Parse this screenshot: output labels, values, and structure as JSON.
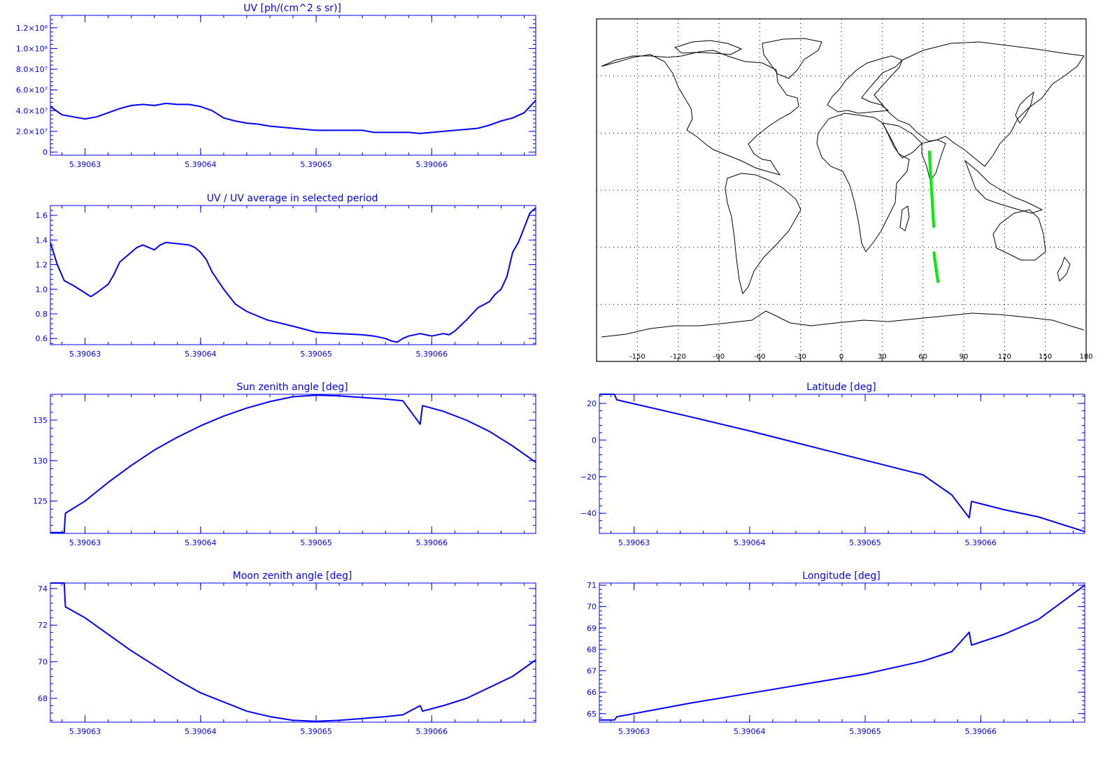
{
  "colors": {
    "plot": "#0000ff",
    "track": "#00ee00",
    "map_line": "#000000",
    "background": "#ffffff"
  },
  "chart_data": [
    {
      "id": "uv",
      "type": "line",
      "title": "UV [ph/(cm^2 s sr)]",
      "xlim": [
        5.390627,
        5.390669
      ],
      "ylim": [
        -3000000,
        132000000
      ],
      "xticks": [
        5.39063,
        5.39064,
        5.39065,
        5.39066
      ],
      "xtick_labels": [
        "5.39063",
        "5.39064",
        "5.39065",
        "5.39066"
      ],
      "yticks": [
        0,
        20000000,
        40000000,
        60000000,
        80000000,
        100000000,
        120000000
      ],
      "ytick_labels": [
        "0",
        "2.0×10⁷",
        "4.0×10⁷",
        "6.0×10⁷",
        "8.0×10⁷",
        "1.0×10⁸",
        "1.2×10⁸"
      ],
      "x": [
        5.390627,
        5.390628,
        5.390629,
        5.39063,
        5.390631,
        5.390632,
        5.390633,
        5.390634,
        5.390635,
        5.390636,
        5.390637,
        5.390638,
        5.390639,
        5.39064,
        5.390641,
        5.390642,
        5.390643,
        5.390644,
        5.390645,
        5.390646,
        5.390647,
        5.390648,
        5.390649,
        5.39065,
        5.390651,
        5.390652,
        5.390653,
        5.390654,
        5.390655,
        5.390656,
        5.390657,
        5.390658,
        5.390659,
        5.39066,
        5.390661,
        5.390662,
        5.390663,
        5.390664,
        5.390665,
        5.390666,
        5.390667,
        5.390668,
        5.390669
      ],
      "values": [
        44000000,
        36000000,
        34000000,
        32000000,
        34000000,
        38000000,
        42000000,
        45000000,
        46000000,
        45000000,
        47000000,
        46000000,
        46000000,
        44000000,
        40000000,
        33000000,
        30000000,
        28000000,
        27000000,
        25000000,
        24000000,
        23000000,
        22000000,
        21000000,
        21000000,
        21000000,
        21000000,
        21000000,
        19000000,
        19000000,
        19000000,
        19000000,
        18000000,
        19000000,
        20000000,
        21000000,
        22000000,
        23000000,
        26000000,
        30000000,
        33000000,
        38000000,
        50000000
      ]
    },
    {
      "id": "uv-ratio",
      "type": "line",
      "title": "UV / UV average in selected period",
      "xlim": [
        5.390627,
        5.390669
      ],
      "ylim": [
        0.55,
        1.68
      ],
      "xticks": [
        5.39063,
        5.39064,
        5.39065,
        5.39066
      ],
      "xtick_labels": [
        "5.39063",
        "5.39064",
        "5.39065",
        "5.39066"
      ],
      "yticks": [
        0.6,
        0.8,
        1.0,
        1.2,
        1.4,
        1.6
      ],
      "ytick_labels": [
        "0.6",
        "0.8",
        "1.0",
        "1.2",
        "1.4",
        "1.6"
      ],
      "x": [
        5.390627,
        5.3906276,
        5.3906282,
        5.390629,
        5.39063,
        5.3906305,
        5.390631,
        5.390632,
        5.3906325,
        5.390633,
        5.390634,
        5.3906345,
        5.390635,
        5.3906355,
        5.390636,
        5.3906365,
        5.390637,
        5.390638,
        5.390639,
        5.3906395,
        5.39064,
        5.3906405,
        5.390641,
        5.390642,
        5.390643,
        5.3906435,
        5.390644,
        5.390645,
        5.3906458,
        5.390648,
        5.39065,
        5.390652,
        5.390654,
        5.390655,
        5.390656,
        5.3906565,
        5.390657,
        5.3906575,
        5.390658,
        5.390659,
        5.3906595,
        5.39066,
        5.390661,
        5.3906615,
        5.390662,
        5.390663,
        5.3906635,
        5.390664,
        5.390665,
        5.3906655,
        5.390666,
        5.3906665,
        5.390667,
        5.3906675,
        5.390668,
        5.3906685,
        5.390669
      ],
      "values": [
        1.38,
        1.2,
        1.07,
        1.03,
        0.97,
        0.94,
        0.97,
        1.04,
        1.12,
        1.22,
        1.3,
        1.34,
        1.36,
        1.34,
        1.32,
        1.36,
        1.38,
        1.37,
        1.36,
        1.34,
        1.3,
        1.24,
        1.14,
        1.0,
        0.88,
        0.85,
        0.82,
        0.78,
        0.75,
        0.7,
        0.65,
        0.64,
        0.63,
        0.62,
        0.6,
        0.58,
        0.57,
        0.6,
        0.62,
        0.64,
        0.63,
        0.62,
        0.64,
        0.63,
        0.66,
        0.75,
        0.8,
        0.85,
        0.9,
        0.96,
        1.0,
        1.1,
        1.3,
        1.38,
        1.5,
        1.62,
        1.66
      ]
    },
    {
      "id": "map",
      "type": "scatter",
      "title": "",
      "xlim": [
        -180,
        180
      ],
      "ylim": [
        -90,
        90
      ],
      "xticks": [
        -150,
        -120,
        -90,
        -60,
        -30,
        0,
        30,
        60,
        90,
        120,
        150,
        180
      ],
      "xtick_labels": [
        "-150",
        "-120",
        "-90",
        "-60",
        "-30",
        "0",
        "30",
        "60",
        "90",
        "120",
        "150",
        "180"
      ],
      "grid": true,
      "track": {
        "longitude": [
          64.8,
          65.0,
          65.5,
          66.0,
          66.5,
          67.0,
          67.5,
          67.9,
          68.2,
          68.6,
          69.2,
          69.8,
          70.4,
          71.0
        ],
        "latitude": [
          20,
          16,
          10,
          4,
          -2,
          -8,
          -14,
          -19,
          -33,
          -36,
          -39,
          -42,
          -45,
          -48
        ]
      }
    },
    {
      "id": "sun-zenith",
      "type": "line",
      "title": "Sun zenith angle [deg]",
      "xlim": [
        5.390627,
        5.390669
      ],
      "ylim": [
        121,
        138.2
      ],
      "xticks": [
        5.39063,
        5.39064,
        5.39065,
        5.39066
      ],
      "xtick_labels": [
        "5.39063",
        "5.39064",
        "5.39065",
        "5.39066"
      ],
      "yticks": [
        125,
        130,
        135
      ],
      "ytick_labels": [
        "125",
        "130",
        "135"
      ],
      "x": [
        5.390627,
        5.3906282,
        5.3906283,
        5.39063,
        5.390632,
        5.390634,
        5.390636,
        5.390638,
        5.39064,
        5.390642,
        5.390644,
        5.390646,
        5.390648,
        5.39065,
        5.390652,
        5.390654,
        5.390656,
        5.3906575,
        5.390659,
        5.3906592,
        5.390661,
        5.390663,
        5.390665,
        5.390667,
        5.390669
      ],
      "values": [
        121.1,
        121.1,
        123.5,
        125.0,
        127.3,
        129.4,
        131.3,
        132.9,
        134.3,
        135.5,
        136.5,
        137.3,
        137.9,
        138.1,
        138.0,
        137.8,
        137.6,
        137.4,
        134.5,
        136.8,
        136.1,
        135.0,
        133.6,
        131.8,
        129.8
      ]
    },
    {
      "id": "latitude",
      "type": "line",
      "title": "Latitude [deg]",
      "xlim": [
        5.390627,
        5.390669
      ],
      "ylim": [
        -51,
        25
      ],
      "xticks": [
        5.39063,
        5.39064,
        5.39065,
        5.39066
      ],
      "xtick_labels": [
        "5.39063",
        "5.39064",
        "5.39065",
        "5.39066"
      ],
      "yticks": [
        -40,
        -20,
        0,
        20
      ],
      "ytick_labels": [
        "−40",
        "−20",
        "0",
        "20"
      ],
      "x": [
        5.390627,
        5.3906283,
        5.3906285,
        5.390635,
        5.39064,
        5.390645,
        5.39065,
        5.390655,
        5.3906575,
        5.390659,
        5.3906592,
        5.390662,
        5.390665,
        5.390669
      ],
      "values": [
        25,
        25,
        22,
        12.5,
        5,
        -3,
        -11,
        -19,
        -30,
        -42.5,
        -33.5,
        -38,
        -42,
        -50
      ]
    },
    {
      "id": "moon-zenith",
      "type": "line",
      "title": "Moon zenith angle [deg]",
      "xlim": [
        5.390627,
        5.390669
      ],
      "ylim": [
        66.7,
        74.3
      ],
      "xticks": [
        5.39063,
        5.39064,
        5.39065,
        5.39066
      ],
      "xtick_labels": [
        "5.39063",
        "5.39064",
        "5.39065",
        "5.39066"
      ],
      "yticks": [
        68,
        70,
        72,
        74
      ],
      "ytick_labels": [
        "68",
        "70",
        "72",
        "74"
      ],
      "x": [
        5.390627,
        5.3906282,
        5.3906283,
        5.39063,
        5.390632,
        5.390634,
        5.390636,
        5.390638,
        5.39064,
        5.390642,
        5.390644,
        5.390646,
        5.390648,
        5.39065,
        5.390652,
        5.390654,
        5.390656,
        5.3906575,
        5.390659,
        5.3906592,
        5.390661,
        5.390663,
        5.390665,
        5.390667,
        5.390669
      ],
      "values": [
        74.3,
        74.3,
        73.0,
        72.4,
        71.5,
        70.6,
        69.8,
        69.0,
        68.3,
        67.8,
        67.3,
        67.0,
        66.8,
        66.75,
        66.8,
        66.9,
        67.0,
        67.1,
        67.6,
        67.3,
        67.6,
        68.0,
        68.6,
        69.2,
        70.1
      ]
    },
    {
      "id": "longitude",
      "type": "line",
      "title": "Longitude [deg]",
      "xlim": [
        5.390627,
        5.390669
      ],
      "ylim": [
        64.6,
        71.1
      ],
      "xticks": [
        5.39063,
        5.39064,
        5.39065,
        5.39066
      ],
      "xtick_labels": [
        "5.39063",
        "5.39064",
        "5.39065",
        "5.39066"
      ],
      "yticks": [
        65,
        66,
        67,
        68,
        69,
        70,
        71
      ],
      "ytick_labels": [
        "65",
        "66",
        "67",
        "68",
        "69",
        "70",
        "71"
      ],
      "x": [
        5.390627,
        5.3906283,
        5.3906285,
        5.390635,
        5.39064,
        5.390645,
        5.39065,
        5.390655,
        5.3906575,
        5.390659,
        5.3906592,
        5.390662,
        5.390665,
        5.390669
      ],
      "values": [
        64.7,
        64.7,
        64.85,
        65.5,
        65.95,
        66.4,
        66.85,
        67.45,
        67.9,
        68.8,
        68.2,
        68.7,
        69.4,
        71.0
      ]
    }
  ]
}
